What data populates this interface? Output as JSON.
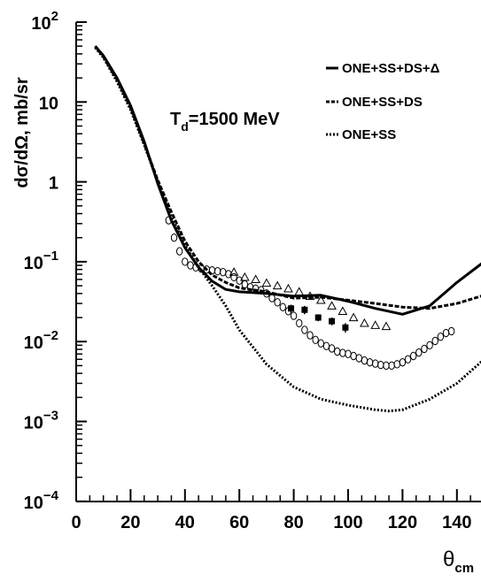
{
  "chart_data": {
    "type": "line",
    "title": "",
    "annotation": "T_d=1500 MeV",
    "annotation_main": "T",
    "annotation_sub": "d",
    "annotation_rest": "=1500 MeV",
    "xlabel": "θ_cm",
    "xlabel_main": "θ",
    "xlabel_sub": "cm",
    "ylabel": "dσ/dΩ, mb/sr",
    "xlim": [
      0,
      150
    ],
    "ylim": [
      0.0001,
      100
    ],
    "yscale": "log",
    "grid": false,
    "legend_position": "top-right",
    "x_ticks": [
      {
        "value": 0,
        "label": "0"
      },
      {
        "value": 20,
        "label": "20"
      },
      {
        "value": 40,
        "label": "40"
      },
      {
        "value": 60,
        "label": "60"
      },
      {
        "value": 80,
        "label": "80"
      },
      {
        "value": 100,
        "label": "100"
      },
      {
        "value": 120,
        "label": "120"
      },
      {
        "value": 140,
        "label": "140"
      }
    ],
    "y_ticks": [
      {
        "value": 100,
        "base": "10",
        "exp": "2"
      },
      {
        "value": 10,
        "base": "10",
        "exp": ""
      },
      {
        "value": 1,
        "base": "1",
        "exp": ""
      },
      {
        "value": 0.1,
        "base": "10",
        "exp": "−1"
      },
      {
        "value": 0.01,
        "base": "10",
        "exp": "−2"
      },
      {
        "value": 0.001,
        "base": "10",
        "exp": "−3"
      },
      {
        "value": 0.0001,
        "base": "10",
        "exp": "−4"
      }
    ],
    "series": [
      {
        "name": "ONE+SS+DS+Δ",
        "style": "solid",
        "x": [
          7,
          10,
          15,
          20,
          25,
          30,
          35,
          40,
          45,
          50,
          55,
          60,
          70,
          80,
          90,
          100,
          110,
          120,
          130,
          140,
          150
        ],
        "y": [
          50,
          38,
          20,
          9,
          3.2,
          0.95,
          0.33,
          0.15,
          0.085,
          0.057,
          0.045,
          0.042,
          0.04,
          0.037,
          0.038,
          0.032,
          0.026,
          0.022,
          0.028,
          0.055,
          0.1
        ]
      },
      {
        "name": "ONE+SS+DS",
        "style": "dashed",
        "x": [
          7,
          10,
          15,
          20,
          25,
          30,
          35,
          40,
          45,
          50,
          55,
          60,
          70,
          80,
          90,
          100,
          110,
          120,
          130,
          140,
          150
        ],
        "y": [
          50,
          37,
          19,
          8.5,
          3.0,
          1.05,
          0.42,
          0.18,
          0.1,
          0.068,
          0.055,
          0.047,
          0.042,
          0.035,
          0.036,
          0.033,
          0.03,
          0.027,
          0.026,
          0.03,
          0.038
        ]
      },
      {
        "name": "ONE+SS",
        "style": "dotted",
        "x": [
          7,
          10,
          15,
          20,
          25,
          30,
          35,
          40,
          45,
          50,
          55,
          60,
          70,
          80,
          90,
          100,
          110,
          115,
          120,
          130,
          140,
          150
        ],
        "y": [
          48,
          36,
          18,
          8.0,
          2.9,
          1.0,
          0.37,
          0.16,
          0.085,
          0.05,
          0.028,
          0.014,
          0.0052,
          0.0027,
          0.0019,
          0.0016,
          0.0014,
          0.00135,
          0.0014,
          0.0019,
          0.003,
          0.006
        ]
      }
    ],
    "data_sets": [
      {
        "marker": "open-circle",
        "x": [
          34,
          36,
          38,
          40,
          42,
          44,
          46,
          48,
          50,
          52,
          54,
          56,
          58,
          60,
          62,
          64,
          66,
          68,
          70,
          72,
          74,
          76,
          78,
          80,
          82,
          84,
          86,
          88,
          90,
          92,
          94,
          96,
          98,
          100,
          102,
          104,
          106,
          108,
          110,
          112,
          114,
          116,
          118,
          120,
          122,
          124,
          126,
          128,
          130,
          132,
          134,
          136,
          138
        ],
        "y": [
          0.33,
          0.2,
          0.135,
          0.1,
          0.09,
          0.085,
          0.082,
          0.08,
          0.078,
          0.076,
          0.074,
          0.07,
          0.064,
          0.058,
          0.052,
          0.048,
          0.046,
          0.044,
          0.04,
          0.035,
          0.031,
          0.027,
          0.024,
          0.021,
          0.017,
          0.014,
          0.012,
          0.0105,
          0.0095,
          0.0088,
          0.0082,
          0.0075,
          0.0072,
          0.007,
          0.0066,
          0.0062,
          0.0058,
          0.0055,
          0.0053,
          0.0051,
          0.005,
          0.005,
          0.0052,
          0.0055,
          0.006,
          0.0066,
          0.0073,
          0.0081,
          0.009,
          0.0102,
          0.0115,
          0.0128,
          0.0135
        ]
      },
      {
        "marker": "open-triangle",
        "x": [
          58,
          62,
          66,
          70,
          74,
          78,
          82,
          86,
          90,
          94,
          98,
          102,
          106,
          110,
          114
        ],
        "y": [
          0.074,
          0.064,
          0.06,
          0.054,
          0.05,
          0.046,
          0.042,
          0.037,
          0.033,
          0.028,
          0.024,
          0.02,
          0.017,
          0.016,
          0.0155
        ]
      },
      {
        "marker": "filled-square",
        "x": [
          79,
          84,
          89,
          94,
          99
        ],
        "y": [
          0.026,
          0.025,
          0.02,
          0.018,
          0.015
        ],
        "err": [
          0.003,
          0.003,
          0.002,
          0.002,
          0.002
        ]
      }
    ]
  }
}
